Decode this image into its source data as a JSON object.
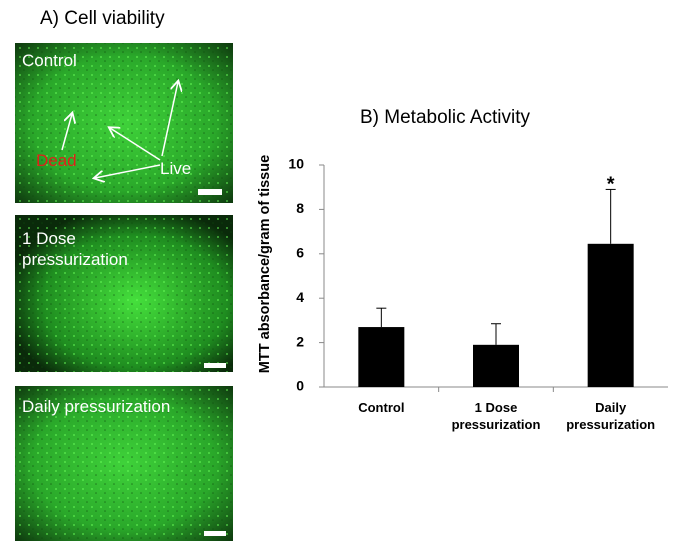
{
  "panel_a": {
    "title": "A)   Cell viability",
    "images": [
      {
        "label": "Control",
        "annotations": [
          "Dead",
          "Live"
        ]
      },
      {
        "label": "1 Dose pressurization"
      },
      {
        "label": "Daily pressurization"
      }
    ]
  },
  "chart_data": {
    "type": "bar",
    "title": "B)   Metabolic Activity",
    "y_label": "MTT absorbance/gram of tissue",
    "categories": [
      "Control",
      "1 Dose pressurization",
      "Daily pressurization"
    ],
    "values": [
      2.7,
      1.9,
      6.45
    ],
    "errors": [
      0.85,
      0.95,
      2.45
    ],
    "color": "#000000",
    "annotations": [
      {
        "category": 2,
        "text": "*"
      }
    ],
    "ylim": [
      0,
      10
    ],
    "yticks": [
      0,
      2,
      4,
      6,
      8,
      10
    ],
    "grid": false
  }
}
